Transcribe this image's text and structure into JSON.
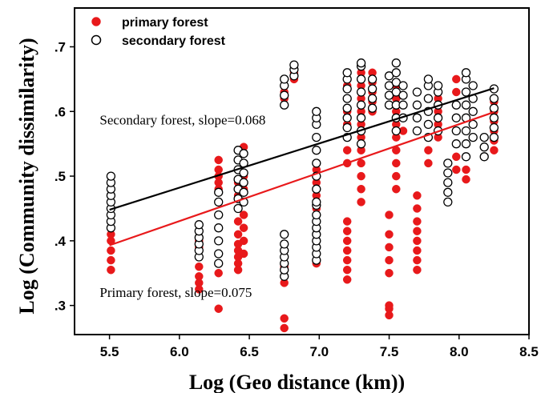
{
  "chart_data": {
    "type": "scatter",
    "xlabel": "Log (Geo distance (km))",
    "ylabel": "Log (Community dissimilarity)",
    "xlim": [
      5.25,
      8.5
    ],
    "ylim": [
      0.255,
      0.76
    ],
    "x_ticks": [
      5.5,
      6.0,
      6.5,
      7.0,
      7.5,
      8.0,
      8.5
    ],
    "x_tick_labels": [
      "5.5",
      "6.0",
      "6.5",
      "7.0",
      "7.5",
      "8.0",
      "8.5"
    ],
    "y_ticks": [
      0.3,
      0.4,
      0.5,
      0.6,
      0.7
    ],
    "y_tick_labels": [
      ".3",
      ".4",
      ".5",
      ".6",
      ".7"
    ],
    "grid": false,
    "legend": "top-left",
    "series": [
      {
        "name": "primary forest",
        "marker": "filled-circle",
        "color": "#e8191b",
        "clusters": [
          {
            "x": 5.51,
            "y": [
              0.355,
              0.37,
              0.385,
              0.4,
              0.41
            ]
          },
          {
            "x": 6.14,
            "y": [
              0.325,
              0.335,
              0.345,
              0.36,
              0.375,
              0.39,
              0.4
            ]
          },
          {
            "x": 6.28,
            "y": [
              0.295,
              0.35,
              0.42,
              0.44,
              0.46,
              0.48,
              0.49,
              0.5,
              0.51,
              0.525
            ]
          },
          {
            "x": 6.42,
            "y": [
              0.355,
              0.365,
              0.375,
              0.385,
              0.395,
              0.41,
              0.43,
              0.45,
              0.47,
              0.49,
              0.51
            ]
          },
          {
            "x": 6.46,
            "y": [
              0.38,
              0.4,
              0.42,
              0.44,
              0.46,
              0.48,
              0.5,
              0.52,
              0.535,
              0.545
            ]
          },
          {
            "x": 6.75,
            "y": [
              0.265,
              0.28,
              0.335,
              0.345,
              0.36,
              0.62,
              0.63,
              0.64
            ]
          },
          {
            "x": 6.82,
            "y": [
              0.65,
              0.655,
              0.66
            ]
          },
          {
            "x": 6.98,
            "y": [
              0.365,
              0.39,
              0.41,
              0.43,
              0.45,
              0.47,
              0.49,
              0.51
            ]
          },
          {
            "x": 7.2,
            "y": [
              0.34,
              0.355,
              0.37,
              0.385,
              0.4,
              0.415,
              0.43,
              0.52,
              0.54,
              0.56,
              0.58,
              0.6,
              0.62,
              0.64
            ]
          },
          {
            "x": 7.3,
            "y": [
              0.46,
              0.48,
              0.5,
              0.52,
              0.54,
              0.56,
              0.58,
              0.6,
              0.62,
              0.64,
              0.66
            ]
          },
          {
            "x": 7.38,
            "y": [
              0.6,
              0.615,
              0.63,
              0.645,
              0.66
            ]
          },
          {
            "x": 7.5,
            "y": [
              0.285,
              0.295,
              0.3,
              0.35,
              0.37,
              0.39,
              0.41,
              0.44
            ]
          },
          {
            "x": 7.55,
            "y": [
              0.48,
              0.5,
              0.52,
              0.54,
              0.56,
              0.58,
              0.6,
              0.62,
              0.64,
              0.66
            ]
          },
          {
            "x": 7.6,
            "y": [
              0.57,
              0.59
            ]
          },
          {
            "x": 7.7,
            "y": [
              0.355,
              0.37,
              0.385,
              0.4,
              0.415,
              0.43,
              0.45,
              0.47
            ]
          },
          {
            "x": 7.78,
            "y": [
              0.52,
              0.54,
              0.56,
              0.58,
              0.6,
              0.62,
              0.64
            ]
          },
          {
            "x": 7.85,
            "y": [
              0.56,
              0.58,
              0.6,
              0.62
            ]
          },
          {
            "x": 7.98,
            "y": [
              0.51,
              0.53,
              0.55,
              0.57,
              0.59,
              0.61,
              0.63,
              0.65
            ]
          },
          {
            "x": 8.05,
            "y": [
              0.495,
              0.51,
              0.53,
              0.55,
              0.57,
              0.59,
              0.61
            ]
          },
          {
            "x": 8.25,
            "y": [
              0.54,
              0.555,
              0.57,
              0.585,
              0.6,
              0.615
            ]
          }
        ]
      },
      {
        "name": "secondary forest",
        "marker": "open-circle",
        "color": "#000000",
        "clusters": [
          {
            "x": 5.51,
            "y": [
              0.42,
              0.43,
              0.44,
              0.45,
              0.46,
              0.47,
              0.48,
              0.49,
              0.5
            ]
          },
          {
            "x": 6.14,
            "y": [
              0.375,
              0.385,
              0.395,
              0.405,
              0.415,
              0.425
            ]
          },
          {
            "x": 6.28,
            "y": [
              0.365,
              0.38,
              0.4,
              0.42,
              0.44,
              0.46,
              0.475
            ]
          },
          {
            "x": 6.42,
            "y": [
              0.45,
              0.465,
              0.48,
              0.495,
              0.51,
              0.525,
              0.54
            ]
          },
          {
            "x": 6.46,
            "y": [
              0.46,
              0.475,
              0.49,
              0.505,
              0.52,
              0.535
            ]
          },
          {
            "x": 6.75,
            "y": [
              0.345,
              0.355,
              0.365,
              0.375,
              0.385,
              0.395,
              0.41,
              0.61,
              0.625,
              0.64,
              0.65
            ]
          },
          {
            "x": 6.82,
            "y": [
              0.655,
              0.665,
              0.672
            ]
          },
          {
            "x": 6.98,
            "y": [
              0.37,
              0.38,
              0.39,
              0.4,
              0.41,
              0.42,
              0.43,
              0.44,
              0.455,
              0.46,
              0.48,
              0.5,
              0.52,
              0.54,
              0.56,
              0.58,
              0.59,
              0.6
            ]
          },
          {
            "x": 7.2,
            "y": [
              0.56,
              0.575,
              0.59,
              0.605,
              0.62,
              0.635,
              0.65,
              0.66
            ]
          },
          {
            "x": 7.3,
            "y": [
              0.55,
              0.57,
              0.59,
              0.61,
              0.63,
              0.65,
              0.67,
              0.675
            ]
          },
          {
            "x": 7.38,
            "y": [
              0.605,
              0.62,
              0.635,
              0.65
            ]
          },
          {
            "x": 7.5,
            "y": [
              0.61,
              0.625,
              0.64,
              0.655
            ]
          },
          {
            "x": 7.55,
            "y": [
              0.57,
              0.59,
              0.61,
              0.63,
              0.645,
              0.66,
              0.675
            ]
          },
          {
            "x": 7.6,
            "y": [
              0.59,
              0.61,
              0.625,
              0.64
            ]
          },
          {
            "x": 7.7,
            "y": [
              0.57,
              0.59,
              0.61,
              0.63
            ]
          },
          {
            "x": 7.78,
            "y": [
              0.56,
              0.58,
              0.6,
              0.62,
              0.64,
              0.65
            ]
          },
          {
            "x": 7.85,
            "y": [
              0.57,
              0.59,
              0.61,
              0.63,
              0.64
            ]
          },
          {
            "x": 7.92,
            "y": [
              0.46,
              0.475,
              0.49,
              0.505,
              0.52
            ]
          },
          {
            "x": 7.98,
            "y": [
              0.55,
              0.57,
              0.59,
              0.61
            ]
          },
          {
            "x": 8.05,
            "y": [
              0.53,
              0.55,
              0.57,
              0.59,
              0.61,
              0.63,
              0.65,
              0.66
            ]
          },
          {
            "x": 8.1,
            "y": [
              0.56,
              0.58,
              0.6,
              0.62,
              0.64
            ]
          },
          {
            "x": 8.18,
            "y": [
              0.53,
              0.545,
              0.56
            ]
          },
          {
            "x": 8.25,
            "y": [
              0.56,
              0.575,
              0.59,
              0.605,
              0.62,
              0.635
            ]
          }
        ]
      }
    ],
    "fit_lines": [
      {
        "series": "secondary forest",
        "color": "#000000",
        "x": [
          5.5,
          8.25
        ],
        "y": [
          0.448,
          0.636
        ]
      },
      {
        "series": "primary forest",
        "color": "#e8191b",
        "x": [
          5.5,
          8.25
        ],
        "y": [
          0.393,
          0.599
        ]
      }
    ],
    "annotations": [
      {
        "text": "Secondary forest, slope=0.068",
        "x": 5.43,
        "y": 0.58
      },
      {
        "text": "Primary forest,  slope=0.075",
        "x": 5.43,
        "y": 0.313
      }
    ]
  }
}
